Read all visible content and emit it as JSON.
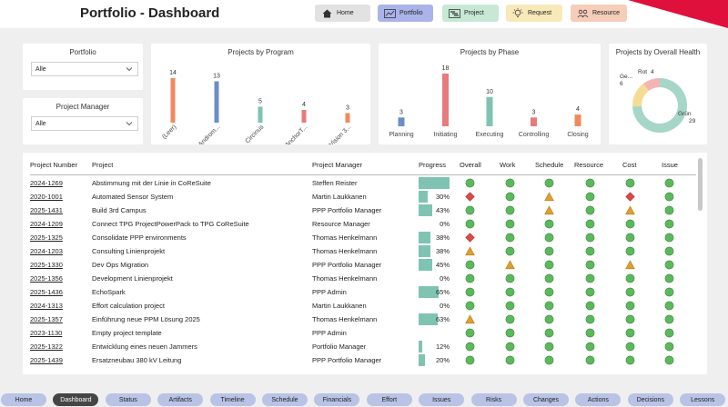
{
  "header": {
    "title": "Portfolio - Dashboard",
    "nav": [
      {
        "label": "Home",
        "icon": "home-icon",
        "bg": "#e2e2e2"
      },
      {
        "label": "Portfolio",
        "icon": "line-chart-icon",
        "bg": "#aab4ea"
      },
      {
        "label": "Project",
        "icon": "gantt-icon",
        "bg": "#c6e8d4"
      },
      {
        "label": "Request",
        "icon": "lightbulb-icon",
        "bg": "#f8e9b9"
      },
      {
        "label": "Resource",
        "icon": "people-icon",
        "bg": "#f5cdb9"
      }
    ],
    "accent_color": "#e0103c"
  },
  "filters": {
    "portfolio": {
      "label": "Portfolio",
      "value": "Alle"
    },
    "manager": {
      "label": "Project Manager",
      "value": "Alle"
    }
  },
  "chart_data": [
    {
      "type": "bar",
      "title": "Projects by Program",
      "categories": [
        "(Leer)",
        "Androm...",
        "Circinus",
        "AnchorT...",
        "Vision 3..."
      ],
      "values": [
        14,
        13,
        5,
        4,
        3
      ],
      "colors": [
        "#f08a5d",
        "#6b8ec7",
        "#7fc4b2",
        "#e87a7a",
        "#f08a5d"
      ],
      "ylim": [
        0,
        14
      ]
    },
    {
      "type": "bar",
      "title": "Projects by Phase",
      "categories": [
        "Planning",
        "Initiating",
        "Executing",
        "Controlling",
        "Closing"
      ],
      "values": [
        3,
        18,
        10,
        3,
        4
      ],
      "colors": [
        "#6b8ec7",
        "#e87a7a",
        "#7fc4b2",
        "#e87a7a",
        "#f08a5d"
      ],
      "ylim": [
        0,
        18
      ]
    },
    {
      "type": "pie",
      "title": "Projects by Overall Health",
      "slices": [
        {
          "label": "Grün",
          "value": 29,
          "color": "#a5d6c8"
        },
        {
          "label": "Ge...",
          "value": 6,
          "color": "#f5dc95"
        },
        {
          "label": "Rot",
          "value": 4,
          "color": "#f4b4b4"
        }
      ]
    }
  ],
  "table": {
    "columns": [
      "Project Number",
      "Project",
      "Project Manager",
      "Progress",
      "Overall",
      "Work",
      "Schedule",
      "Resource",
      "Cost",
      "Issue"
    ],
    "rows": [
      {
        "num": "2024-1269",
        "name": "Abstimmung mit der Linie in CoReSuite",
        "pm": "Steffen Reister",
        "progress": 100,
        "prog_text": "",
        "status": [
          "green",
          "green",
          "green",
          "green",
          "green",
          "green"
        ]
      },
      {
        "num": "2020-1001",
        "name": "Automated Sensor System",
        "pm": "Martin Laukkanen",
        "progress": 30,
        "prog_text": "30%",
        "status": [
          "red",
          "green",
          "orange",
          "green",
          "red",
          "green"
        ]
      },
      {
        "num": "2025-1431",
        "name": "Build 3rd Campus",
        "pm": "PPP Portfolio Manager",
        "progress": 43,
        "prog_text": "43%",
        "status": [
          "green",
          "green",
          "orange",
          "green",
          "orange",
          "green"
        ]
      },
      {
        "num": "2024-1209",
        "name": "Connect TPG ProjectPowerPack to TPG CoReSuite",
        "pm": "Resource Manager",
        "progress": 0,
        "prog_text": "0%",
        "status": [
          "green",
          "green",
          "green",
          "green",
          "green",
          "green"
        ]
      },
      {
        "num": "2025-1325",
        "name": "Consolidate PPP environments",
        "pm": "Thomas Henkelmann",
        "progress": 38,
        "prog_text": "38%",
        "status": [
          "red",
          "green",
          "green",
          "green",
          "green",
          "green"
        ]
      },
      {
        "num": "2024-1203",
        "name": "Consulting Linienprojekt",
        "pm": "Thomas Henkelmann",
        "progress": 38,
        "prog_text": "38%",
        "status": [
          "orange",
          "green",
          "green",
          "green",
          "green",
          "green"
        ]
      },
      {
        "num": "2025-1330",
        "name": "Dev Ops Migration",
        "pm": "PPP Portfolio Manager",
        "progress": 45,
        "prog_text": "45%",
        "status": [
          "green",
          "orange",
          "green",
          "green",
          "orange",
          "green"
        ]
      },
      {
        "num": "2025-1356",
        "name": "Development Linienprojekt",
        "pm": "Thomas Henkelmann",
        "progress": 0,
        "prog_text": "0%",
        "status": [
          "green",
          "green",
          "green",
          "green",
          "green",
          "green"
        ]
      },
      {
        "num": "2025-1436",
        "name": "EchoSpark",
        "pm": "PPP Admin",
        "progress": 65,
        "prog_text": "65%",
        "status": [
          "green",
          "green",
          "green",
          "green",
          "green",
          "green"
        ]
      },
      {
        "num": "2024-1313",
        "name": "Effort calculation project",
        "pm": "Martin Laukkanen",
        "progress": 0,
        "prog_text": "0%",
        "status": [
          "green",
          "green",
          "green",
          "green",
          "green",
          "green"
        ]
      },
      {
        "num": "2025-1357",
        "name": "Einführung neue PPM Lösung 2025",
        "pm": "Thomas Henkelmann",
        "progress": 63,
        "prog_text": "63%",
        "status": [
          "orange",
          "green",
          "green",
          "green",
          "green",
          "green"
        ]
      },
      {
        "num": "2023-1130",
        "name": "Empty project template",
        "pm": "PPP Admin",
        "progress": 0,
        "prog_text": "",
        "status": [
          "green",
          "green",
          "green",
          "green",
          "green",
          "green"
        ]
      },
      {
        "num": "2025-1322",
        "name": "Entwicklung eines neuen Jammers",
        "pm": "Portfolio Manager",
        "progress": 12,
        "prog_text": "12%",
        "status": [
          "green",
          "green",
          "green",
          "green",
          "green",
          "green"
        ]
      },
      {
        "num": "2025-1439",
        "name": "Ersatzneubau 380 kV Leitung",
        "pm": "PPP Portfolio Manager",
        "progress": 20,
        "prog_text": "20%",
        "status": [
          "green",
          "green",
          "green",
          "green",
          "green",
          "green"
        ]
      }
    ]
  },
  "bottom_tabs": [
    "Home",
    "Dashboard",
    "Status",
    "Artifacts",
    "Timeline",
    "Schedule",
    "Financials",
    "Effort",
    "Issues",
    "Risks",
    "Changes",
    "Actions",
    "Decisions",
    "Lessons"
  ],
  "active_tab": "Dashboard"
}
